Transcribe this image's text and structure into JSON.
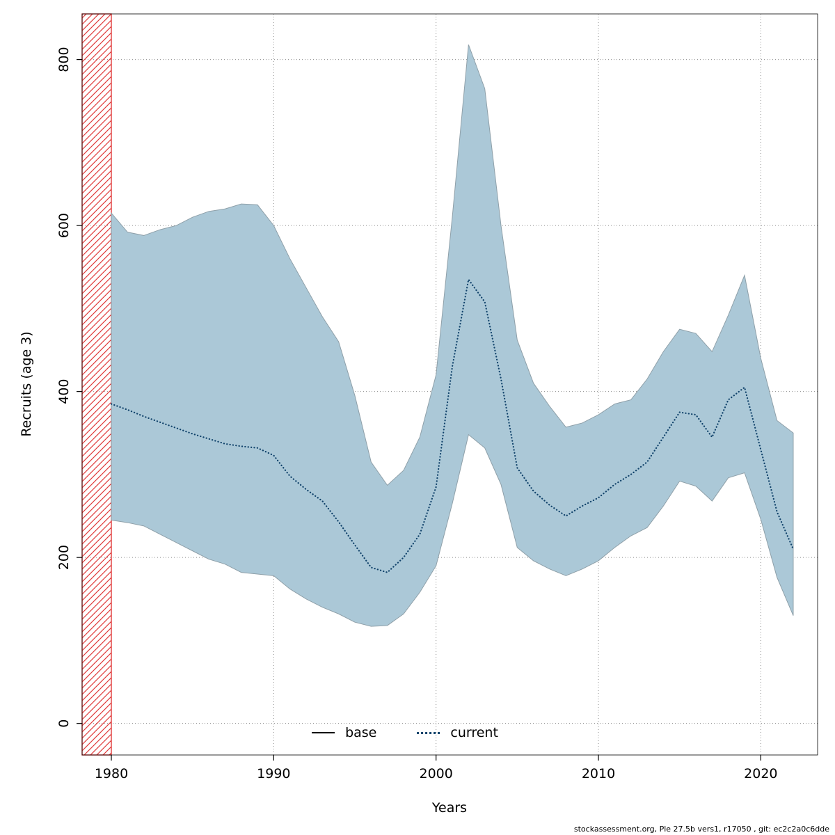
{
  "footer": {
    "credit": "stockassessment.org, Ple 27.5b vers1, r17050 , git: ec2c2a0c6dde"
  },
  "chart_data": {
    "type": "area",
    "title": "",
    "xlabel": "Years",
    "ylabel": "Recruits (age 3)",
    "xlim": [
      1978.2,
      2023.5
    ],
    "ylim": [
      -38,
      855
    ],
    "x_ticks": [
      1980,
      1990,
      2000,
      2010,
      2020
    ],
    "y_ticks": [
      0,
      200,
      400,
      600,
      800
    ],
    "grid": true,
    "legend": [
      {
        "label": "base",
        "style": "solid",
        "color": "#000000"
      },
      {
        "label": "current",
        "style": "dotted",
        "color": "#11436b"
      }
    ],
    "hatch_region": {
      "x_start": 1978.2,
      "x_end": 1980,
      "color": "#e03a3a"
    },
    "colors": {
      "band_fill": "#abc8d7",
      "band_stroke": "#8fa0a9",
      "line": "#11436b",
      "grid": "#8c8c8c"
    },
    "years": [
      1980,
      1981,
      1982,
      1983,
      1984,
      1985,
      1986,
      1987,
      1988,
      1989,
      1990,
      1991,
      1992,
      1993,
      1994,
      1995,
      1996,
      1997,
      1998,
      1999,
      2000,
      2001,
      2002,
      2003,
      2004,
      2005,
      2006,
      2007,
      2008,
      2009,
      2010,
      2011,
      2012,
      2013,
      2014,
      2015,
      2016,
      2017,
      2018,
      2019,
      2020,
      2021,
      2022
    ],
    "series": [
      {
        "name": "current",
        "values": [
          385,
          378,
          370,
          363,
          356,
          349,
          343,
          337,
          334,
          332,
          323,
          298,
          282,
          268,
          243,
          215,
          188,
          182,
          200,
          228,
          285,
          430,
          535,
          508,
          415,
          308,
          280,
          263,
          250,
          262,
          272,
          288,
          300,
          315,
          345,
          375,
          372,
          345,
          390,
          405,
          330,
          255,
          210
        ]
      }
    ],
    "band": {
      "name": "confidence-interval",
      "upper": [
        615,
        592,
        588,
        595,
        600,
        610,
        617,
        620,
        626,
        625,
        600,
        560,
        525,
        490,
        460,
        395,
        315,
        287,
        305,
        345,
        420,
        610,
        818,
        765,
        600,
        462,
        410,
        382,
        357,
        362,
        372,
        385,
        390,
        415,
        448,
        475,
        470,
        448,
        492,
        540,
        440,
        365,
        350
      ],
      "lower": [
        245,
        242,
        238,
        228,
        218,
        208,
        198,
        192,
        182,
        180,
        178,
        162,
        150,
        140,
        132,
        122,
        117,
        118,
        132,
        158,
        190,
        265,
        348,
        332,
        288,
        212,
        196,
        186,
        178,
        186,
        196,
        212,
        226,
        236,
        262,
        292,
        286,
        268,
        296,
        302,
        246,
        176,
        130
      ]
    }
  }
}
